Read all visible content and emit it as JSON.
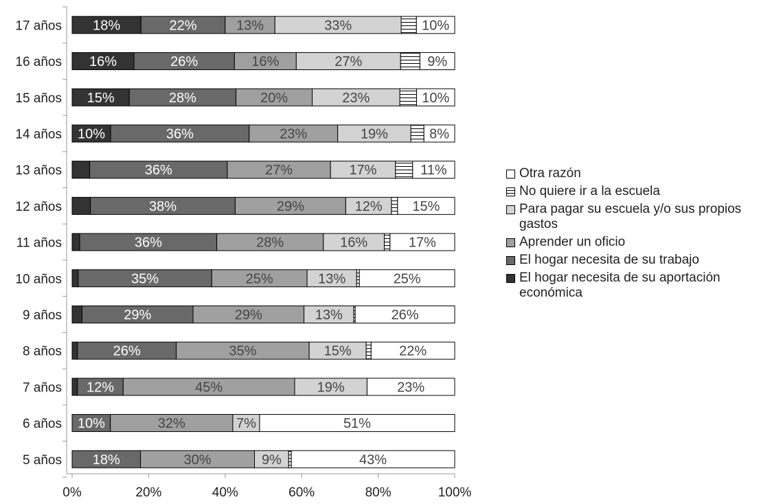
{
  "chart_data": {
    "type": "bar",
    "orientation": "horizontal",
    "stacked": "percent",
    "title": "",
    "categories": [
      "17 años",
      "16 años",
      "15 años",
      "14 años",
      "13 años",
      "12 años",
      "11 años",
      "10 años",
      "9 años",
      "8 años",
      "7 años",
      "6 años",
      "5 años"
    ],
    "series": [
      {
        "name": "El hogar necesita de su aportación económica",
        "color": "#333333",
        "pattern": "solid",
        "values": [
          18,
          16,
          15,
          10,
          4.6,
          4.8,
          2,
          1.6,
          2.6,
          1.4,
          1.4,
          0,
          0
        ],
        "labels": [
          "18%",
          "16%",
          "15%",
          "10%",
          "",
          "",
          "",
          "",
          "",
          "",
          "",
          "",
          ""
        ]
      },
      {
        "name": "El hogar necesita de su trabajo",
        "color": "#696969",
        "pattern": "solid",
        "values": [
          22,
          26,
          28,
          36,
          36,
          38,
          36,
          35,
          29,
          26,
          12,
          10,
          18
        ],
        "labels": [
          "22%",
          "26%",
          "28%",
          "36%",
          "36%",
          "38%",
          "36%",
          "35%",
          "29%",
          "26%",
          "12%",
          "10%",
          "18%"
        ]
      },
      {
        "name": "Aprender un oficio",
        "color": "#a0a0a0",
        "pattern": "solid",
        "values": [
          13,
          16,
          20,
          23,
          27,
          29,
          28,
          25,
          29,
          35,
          45,
          32,
          30
        ],
        "labels": [
          "13%",
          "16%",
          "20%",
          "23%",
          "27%",
          "29%",
          "28%",
          "25%",
          "29%",
          "35%",
          "45%",
          "32%",
          "30%"
        ]
      },
      {
        "name": "Para pagar su escuela y/o sus propios gastos",
        "color": "#d3d3d3",
        "pattern": "solid",
        "values": [
          33,
          27,
          23,
          19,
          17,
          12,
          16,
          13,
          13,
          15,
          19,
          7,
          9
        ],
        "labels": [
          "33%",
          "27%",
          "23%",
          "19%",
          "17%",
          "12%",
          "16%",
          "13%",
          "13%",
          "15%",
          "19%",
          "7%",
          "9%"
        ]
      },
      {
        "name": "No quiere ir a la escuela",
        "color": "#ffffff",
        "pattern": "horizontal-lines",
        "values": [
          4,
          5,
          4.4,
          3.4,
          4.5,
          1.6,
          1.5,
          0.7,
          0.4,
          1.3,
          0,
          0,
          0.7
        ],
        "labels": [
          "",
          "",
          "",
          "",
          "",
          "",
          "",
          "",
          "",
          "",
          "",
          "",
          ""
        ]
      },
      {
        "name": "Otra razón",
        "color": "#ffffff",
        "pattern": "solid",
        "values": [
          10,
          9,
          10,
          8,
          11,
          15,
          17,
          25,
          26,
          22,
          23,
          51,
          43
        ],
        "labels": [
          "10%",
          "9%",
          "10%",
          "8%",
          "11%",
          "15%",
          "17%",
          "25%",
          "26%",
          "22%",
          "23%",
          "51%",
          "43%"
        ]
      }
    ],
    "xlim": [
      0,
      100
    ],
    "xticks": [
      "0%",
      "20%",
      "40%",
      "60%",
      "80%",
      "100%"
    ],
    "xlabel": "",
    "ylabel": "",
    "grid": false,
    "legend_position": "right",
    "legend_order": [
      "Otra razón",
      "No quiere ir a la escuela",
      "Para pagar su escuela y/o sus propios gastos",
      "Aprender un oficio",
      " El hogar necesita de su trabajo",
      "El hogar necesita de su aportación económica"
    ]
  }
}
